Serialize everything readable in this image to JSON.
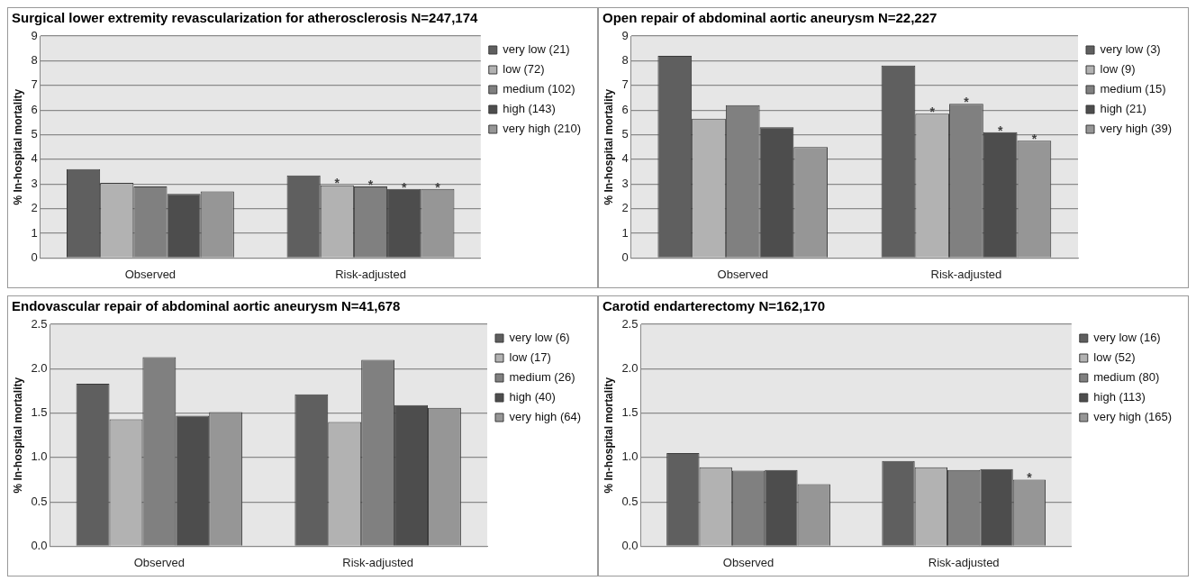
{
  "chart_data": [
    {
      "type": "bar",
      "title": "Surgical lower extremity revascularization for atherosclerosis N=247,174",
      "ylabel": "% In-hospital mortality",
      "categories": [
        "Observed",
        "Risk-adjusted"
      ],
      "ylim": [
        0,
        9
      ],
      "yticks": [
        0,
        1,
        2,
        3,
        4,
        5,
        6,
        7,
        8,
        9
      ],
      "grid": "y",
      "legend": "right",
      "series": [
        {
          "name": "very low (21)",
          "color": "#5f5f5f",
          "values": [
            3.6,
            3.35
          ]
        },
        {
          "name": "low (72)",
          "color": "#b2b2b2",
          "values": [
            3.05,
            2.95
          ]
        },
        {
          "name": "medium (102)",
          "color": "#808080",
          "values": [
            2.9,
            2.9
          ]
        },
        {
          "name": "high (143)",
          "color": "#4d4d4d",
          "values": [
            2.6,
            2.8
          ]
        },
        {
          "name": "very high (210)",
          "color": "#969696",
          "values": [
            2.7,
            2.8
          ]
        }
      ],
      "annotations": [
        {
          "text": "*",
          "y": 2.95
        },
        {
          "text": "*",
          "y": 2.9
        },
        {
          "text": "*",
          "y": 2.8
        },
        {
          "text": "*",
          "y": 2.8
        }
      ]
    },
    {
      "type": "bar",
      "title": "Open repair of abdominal aortic aneurysm N=22,227",
      "ylabel": "% In-hospital mortality",
      "categories": [
        "Observed",
        "Risk-adjusted"
      ],
      "ylim": [
        0,
        9
      ],
      "yticks": [
        0,
        1,
        2,
        3,
        4,
        5,
        6,
        7,
        8,
        9
      ],
      "grid": "y",
      "legend": "right",
      "series": [
        {
          "name": "very low (3)",
          "color": "#5f5f5f",
          "values": [
            8.2,
            7.8
          ]
        },
        {
          "name": "low (9)",
          "color": "#b2b2b2",
          "values": [
            5.65,
            5.85
          ]
        },
        {
          "name": "medium (15)",
          "color": "#808080",
          "values": [
            6.2,
            6.25
          ]
        },
        {
          "name": "high (21)",
          "color": "#4d4d4d",
          "values": [
            5.3,
            5.1
          ]
        },
        {
          "name": "very high (39)",
          "color": "#969696",
          "values": [
            4.5,
            4.75
          ]
        }
      ],
      "annotations": [
        {
          "text": "*",
          "y": 5.85
        },
        {
          "text": "*",
          "y": 6.25
        },
        {
          "text": "*",
          "y": 5.1
        },
        {
          "text": "*",
          "y": 4.75
        }
      ]
    },
    {
      "type": "bar",
      "title": "Endovascular repair of abdominal aortic aneurysm N=41,678",
      "ylabel": "% In-hospital mortality",
      "categories": [
        "Observed",
        "Risk-adjusted"
      ],
      "ylim": [
        0,
        2.5
      ],
      "yticks": [
        {
          "value": 0,
          "label": "0.0"
        },
        0.5,
        {
          "value": 1,
          "label": "1.0"
        },
        1.5,
        {
          "value": 2,
          "label": "2.0"
        },
        2.5
      ],
      "grid": "y",
      "legend": "right",
      "series": [
        {
          "name": "very low (6)",
          "color": "#5f5f5f",
          "values": [
            1.83,
            1.71
          ]
        },
        {
          "name": "low (17)",
          "color": "#b2b2b2",
          "values": [
            1.43,
            1.4
          ]
        },
        {
          "name": "medium (26)",
          "color": "#808080",
          "values": [
            2.13,
            2.1
          ]
        },
        {
          "name": "high (40)",
          "color": "#4d4d4d",
          "values": [
            1.47,
            1.59
          ]
        },
        {
          "name": "very high (64)",
          "color": "#969696",
          "values": [
            1.51,
            1.56
          ]
        }
      ]
    },
    {
      "type": "bar",
      "title": "Carotid endarterectomy N=162,170",
      "ylabel": "% In-hospital mortality",
      "categories": [
        "Observed",
        "Risk-adjusted"
      ],
      "ylim": [
        0,
        2.5
      ],
      "yticks": [
        {
          "value": 0,
          "label": "0.0"
        },
        0.5,
        {
          "value": 1,
          "label": "1.0"
        },
        1.5,
        {
          "value": 2,
          "label": "2.0"
        },
        2.5
      ],
      "grid": "y",
      "legend": "right",
      "series": [
        {
          "name": "very low (16)",
          "color": "#5f5f5f",
          "values": [
            1.05,
            0.96
          ]
        },
        {
          "name": "low (52)",
          "color": "#b2b2b2",
          "values": [
            0.89,
            0.89
          ]
        },
        {
          "name": "medium (80)",
          "color": "#808080",
          "values": [
            0.85,
            0.86
          ]
        },
        {
          "name": "high (113)",
          "color": "#4d4d4d",
          "values": [
            0.86,
            0.87
          ]
        },
        {
          "name": "very high (165)",
          "color": "#969696",
          "values": [
            0.7,
            0.75
          ]
        }
      ],
      "annotations": [
        {
          "text": "*",
          "y": 0.75
        }
      ]
    }
  ]
}
